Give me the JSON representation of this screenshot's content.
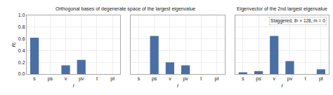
{
  "chart_data": [
    {
      "type": "bar",
      "title": "Orthogonal bases of degenerate space of the largest eigenvalue",
      "categories": [
        "s",
        "ps",
        "v",
        "pv",
        "t",
        "pt"
      ],
      "values": [
        0.62,
        0.0,
        0.15,
        0.24,
        0.0,
        0.0
      ],
      "color": "#4a6fa5",
      "xlabel": "i",
      "ylabel": "Rᵢ",
      "ylim": [
        0.0,
        1.0
      ],
      "yticks": [
        {
          "value": 0.0,
          "label": "0.0"
        },
        0.2,
        0.4,
        0.6,
        0.8,
        {
          "value": 1.0,
          "label": "1.0"
        }
      ],
      "grid": true
    },
    {
      "type": "bar",
      "categories": [
        "s",
        "ps",
        "v",
        "pv",
        "t",
        "pt"
      ],
      "values": [
        0.0,
        0.65,
        0.2,
        0.15,
        0.0,
        0.0
      ],
      "color": "#4a6fa5",
      "xlabel": "i",
      "ylim": [
        0.0,
        1.0
      ],
      "yticks": [
        0.0,
        0.2,
        0.4,
        0.6,
        0.8,
        1.0
      ],
      "tick_labels": "x",
      "grid": true
    },
    {
      "type": "bar",
      "title": "Eigenvector of the 2nd largest eigenvalue",
      "categories": [
        "s",
        "ps",
        "v",
        "pv",
        "t",
        "pt"
      ],
      "values": [
        0.03,
        0.05,
        0.65,
        0.22,
        0.0,
        0.08
      ],
      "color": "#4a6fa5",
      "xlabel": "i",
      "ylim": [
        0.0,
        1.0
      ],
      "yticks": [
        0.0,
        0.2,
        0.4,
        0.6,
        0.8,
        1.0
      ],
      "tick_labels": "x",
      "annotation": "Staggered, 8³ × 128, m = 0",
      "grid": true
    }
  ]
}
